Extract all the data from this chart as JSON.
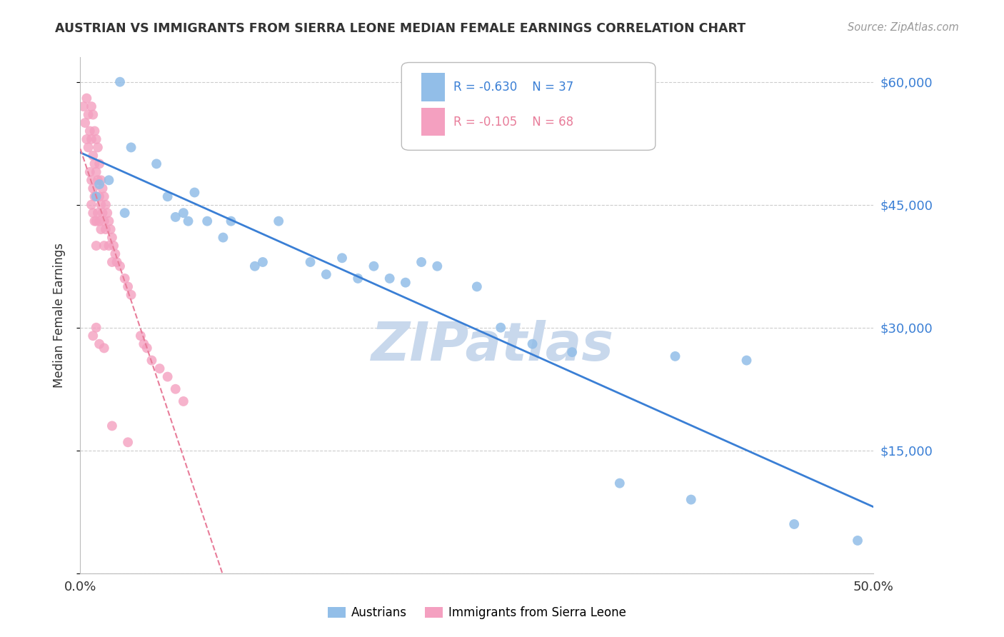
{
  "title": "AUSTRIAN VS IMMIGRANTS FROM SIERRA LEONE MEDIAN FEMALE EARNINGS CORRELATION CHART",
  "source": "Source: ZipAtlas.com",
  "ylabel": "Median Female Earnings",
  "yticks": [
    0,
    15000,
    30000,
    45000,
    60000
  ],
  "ytick_labels": [
    "",
    "$15,000",
    "$30,000",
    "$45,000",
    "$60,000"
  ],
  "xmin": 0.0,
  "xmax": 0.5,
  "ymin": 0,
  "ymax": 63000,
  "blue_color": "#92BEE8",
  "pink_color": "#F4A0C0",
  "blue_line_color": "#3A7FD5",
  "pink_line_color": "#E87D9A",
  "grid_color": "#CCCCCC",
  "watermark_color": "#C8D8EC",
  "background_color": "#FFFFFF",
  "blue_scatter_x": [
    0.01,
    0.012,
    0.018,
    0.025,
    0.028,
    0.032,
    0.048,
    0.055,
    0.06,
    0.065,
    0.068,
    0.072,
    0.08,
    0.09,
    0.095,
    0.11,
    0.115,
    0.125,
    0.145,
    0.155,
    0.165,
    0.175,
    0.185,
    0.195,
    0.205,
    0.215,
    0.225,
    0.25,
    0.265,
    0.285,
    0.31,
    0.34,
    0.375,
    0.385,
    0.42,
    0.45,
    0.49
  ],
  "blue_scatter_y": [
    46000,
    47500,
    48000,
    60000,
    44000,
    52000,
    50000,
    46000,
    43500,
    44000,
    43000,
    46500,
    43000,
    41000,
    43000,
    37500,
    38000,
    43000,
    38000,
    36500,
    38500,
    36000,
    37500,
    36000,
    35500,
    38000,
    37500,
    35000,
    30000,
    28000,
    27000,
    11000,
    26500,
    9000,
    26000,
    6000,
    4000
  ],
  "pink_scatter_x": [
    0.002,
    0.003,
    0.004,
    0.004,
    0.005,
    0.005,
    0.006,
    0.006,
    0.007,
    0.007,
    0.007,
    0.007,
    0.008,
    0.008,
    0.008,
    0.008,
    0.009,
    0.009,
    0.009,
    0.009,
    0.01,
    0.01,
    0.01,
    0.01,
    0.01,
    0.011,
    0.011,
    0.011,
    0.012,
    0.012,
    0.012,
    0.013,
    0.013,
    0.013,
    0.014,
    0.014,
    0.015,
    0.015,
    0.015,
    0.016,
    0.016,
    0.017,
    0.018,
    0.018,
    0.019,
    0.02,
    0.02,
    0.021,
    0.022,
    0.023,
    0.025,
    0.028,
    0.03,
    0.032,
    0.038,
    0.04,
    0.042,
    0.045,
    0.05,
    0.055,
    0.06,
    0.065,
    0.03,
    0.012,
    0.008,
    0.01,
    0.015,
    0.02
  ],
  "pink_scatter_y": [
    57000,
    55000,
    58000,
    53000,
    56000,
    52000,
    54000,
    49000,
    57000,
    53000,
    48000,
    45000,
    56000,
    51000,
    47000,
    44000,
    54000,
    50000,
    46000,
    43000,
    53000,
    49000,
    46000,
    43000,
    40000,
    52000,
    48000,
    44000,
    50000,
    46000,
    43000,
    48000,
    45000,
    42000,
    47000,
    44000,
    46000,
    43000,
    40000,
    45000,
    42000,
    44000,
    43000,
    40000,
    42000,
    41000,
    38000,
    40000,
    39000,
    38000,
    37500,
    36000,
    35000,
    34000,
    29000,
    28000,
    27500,
    26000,
    25000,
    24000,
    22500,
    21000,
    16000,
    28000,
    29000,
    30000,
    27500,
    18000
  ]
}
